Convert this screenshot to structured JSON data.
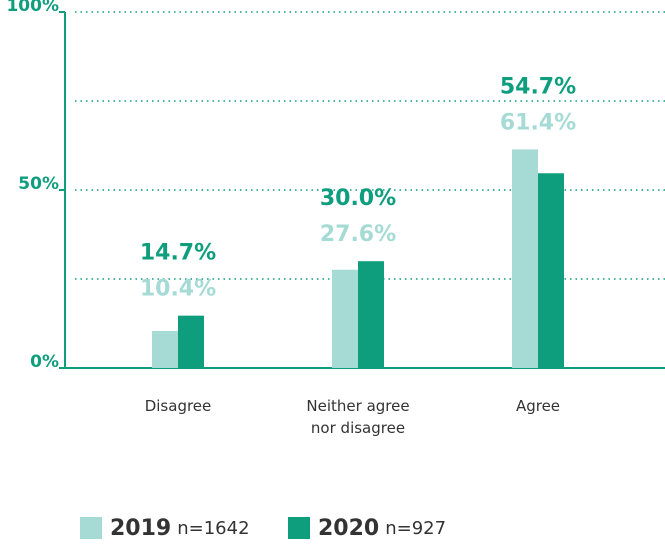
{
  "chart_data": {
    "type": "bar",
    "categories": [
      "Disagree",
      "Neither agree\nnor disagree",
      "Agree"
    ],
    "series": [
      {
        "name": "2019",
        "sample": "n=1642",
        "color": "#a6dbd5",
        "values": [
          10.4,
          27.6,
          61.4
        ],
        "value_labels": [
          "10.4%",
          "27.6%",
          "61.4%"
        ]
      },
      {
        "name": "2020",
        "sample": "n=927",
        "color": "#0e9e7e",
        "values": [
          14.7,
          30.0,
          54.7
        ],
        "value_labels": [
          "14.7%",
          "30.0%",
          "54.7%"
        ]
      }
    ],
    "ylim": [
      0,
      100
    ],
    "yticks": [
      {
        "value": 0,
        "label": "0%"
      },
      {
        "value": 50,
        "label": "50%"
      },
      {
        "value": 100,
        "label": "100%"
      }
    ],
    "grid_lines": [
      25,
      50,
      75,
      100
    ],
    "grid": true
  }
}
